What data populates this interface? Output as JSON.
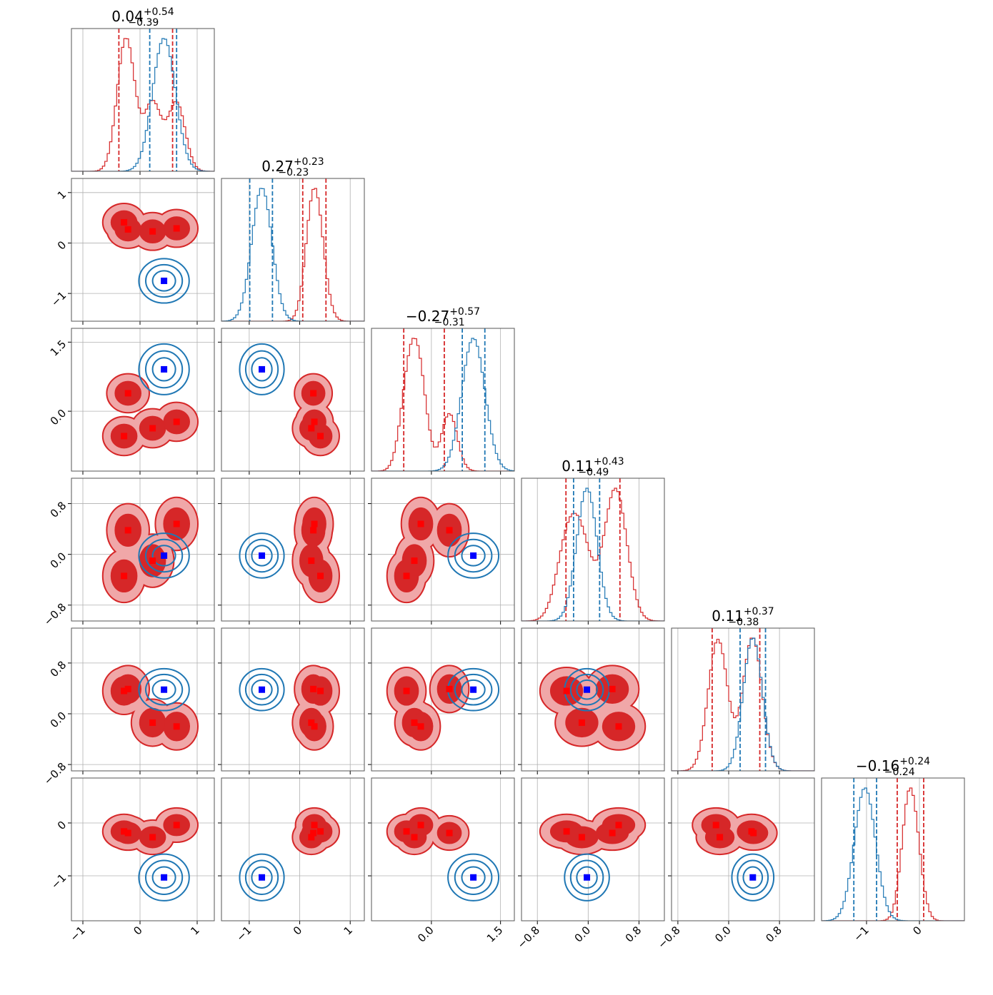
{
  "chart_data": {
    "type": "corner",
    "grid": true,
    "params": [
      {
        "title": {
          "median": "0.04",
          "plus": "+0.54",
          "minus": "−0.39"
        },
        "lim": [
          -1.2,
          1.3
        ],
        "ticks": [
          {
            "value": -1,
            "label": "−1"
          },
          0,
          1
        ]
      },
      {
        "title": {
          "median": "0.27",
          "plus": "+0.23",
          "minus": "−0.23"
        },
        "lim": [
          -1.55,
          1.28
        ],
        "ticks": [
          {
            "value": -1,
            "label": "−1"
          },
          0,
          1
        ]
      },
      {
        "title": {
          "median": "−0.27",
          "plus": "+0.57",
          "minus": "−0.31"
        },
        "lim": [
          -1.3,
          1.8
        ],
        "ticks": [
          {
            "value": 0,
            "label": "0.0"
          },
          1.5
        ]
      },
      {
        "title": {
          "median": "0.11",
          "plus": "+0.43",
          "minus": "−0.49"
        },
        "lim": [
          -1.05,
          1.2
        ],
        "ticks": [
          {
            "value": -0.8,
            "label": "−0.8"
          },
          {
            "value": 0,
            "label": "0.0"
          },
          0.8
        ]
      },
      {
        "title": {
          "median": "0.11",
          "plus": "+0.37",
          "minus": "−0.38"
        },
        "lim": [
          -0.9,
          1.35
        ],
        "ticks": [
          {
            "value": -0.8,
            "label": "−0.8"
          },
          {
            "value": 0,
            "label": "0.0"
          },
          0.8
        ]
      },
      {
        "title": {
          "median": "−0.16",
          "plus": "+0.24",
          "minus": "−0.24"
        },
        "lim": [
          -1.85,
          0.85
        ],
        "ticks": [
          {
            "value": -1,
            "label": "−1"
          },
          0
        ]
      }
    ],
    "red": {
      "color": "#d62728",
      "fill_light": "#f0a7a8",
      "marker_color": "#ff0000",
      "modes": [
        [
          -0.28,
          0.41,
          -0.54,
          -0.34,
          0.36,
          -0.16
        ],
        [
          -0.21,
          0.27,
          0.39,
          0.38,
          0.39,
          -0.19
        ],
        [
          0.22,
          0.23,
          -0.37,
          -0.1,
          -0.14,
          -0.27
        ],
        [
          0.64,
          0.29,
          -0.23,
          0.48,
          -0.2,
          -0.04
        ]
      ],
      "spread": [
        0.15,
        0.15,
        0.17,
        0.17,
        0.15,
        0.13
      ],
      "quantiles": [
        [
          -0.37,
          0.57
        ],
        [
          0.06,
          0.52
        ],
        [
          -0.6,
          0.28
        ],
        [
          -0.35,
          0.5
        ],
        [
          -0.26,
          0.49
        ],
        [
          -0.42,
          0.08
        ]
      ]
    },
    "blue": {
      "color": "#1f77b4",
      "marker_color": "#0000ff",
      "center": [
        0.42,
        -0.75,
        0.91,
        -0.02,
        0.38,
        -1.03
      ],
      "spread": [
        0.2,
        0.2,
        0.25,
        0.16,
        0.15,
        0.2
      ],
      "quantiles": [
        [
          0.17,
          0.64
        ],
        [
          -0.99,
          -0.54
        ],
        [
          0.67,
          1.16
        ],
        [
          -0.23,
          0.18
        ],
        [
          0.18,
          0.58
        ],
        [
          -1.24,
          -0.81
        ]
      ]
    }
  }
}
